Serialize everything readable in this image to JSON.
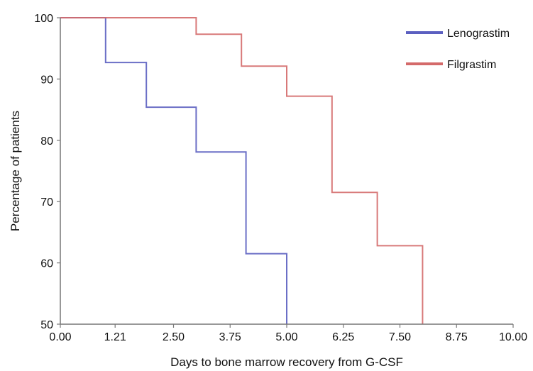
{
  "chart_data": {
    "type": "line",
    "step": true,
    "title": "",
    "xlabel": "Days to bone marrow recovery from G-CSF",
    "ylabel": "Percentage of patients",
    "xlim": [
      0,
      10
    ],
    "ylim": [
      50,
      100
    ],
    "x_ticks": [
      "0.00",
      "1.21",
      "2.50",
      "3.75",
      "5.00",
      "6.25",
      "7.50",
      "8.75",
      "10.00"
    ],
    "x_tick_values": [
      0,
      1.21,
      2.5,
      3.75,
      5.0,
      6.25,
      7.5,
      8.75,
      10.0
    ],
    "y_ticks": [
      "50",
      "60",
      "70",
      "80",
      "90",
      "100"
    ],
    "y_tick_values": [
      50,
      60,
      70,
      80,
      90,
      100
    ],
    "grid": false,
    "legend_position": "top-right",
    "series": [
      {
        "name": "Lenograstim",
        "color": "#5b5fc0",
        "x": [
          0,
          1,
          1,
          1.9,
          1.9,
          3,
          3,
          4.1,
          4.1,
          5,
          5
        ],
        "y": [
          100,
          100,
          92.7,
          92.7,
          85.4,
          85.4,
          78.1,
          78.1,
          61.5,
          61.5,
          50
        ]
      },
      {
        "name": "Filgrastim",
        "color": "#d46a6a",
        "x": [
          0,
          3,
          3,
          4,
          4,
          5,
          5,
          6,
          6,
          7,
          7,
          8,
          8
        ],
        "y": [
          100,
          100,
          97.3,
          97.3,
          92.1,
          92.1,
          87.2,
          87.2,
          71.5,
          71.5,
          62.8,
          62.8,
          50
        ]
      }
    ]
  }
}
